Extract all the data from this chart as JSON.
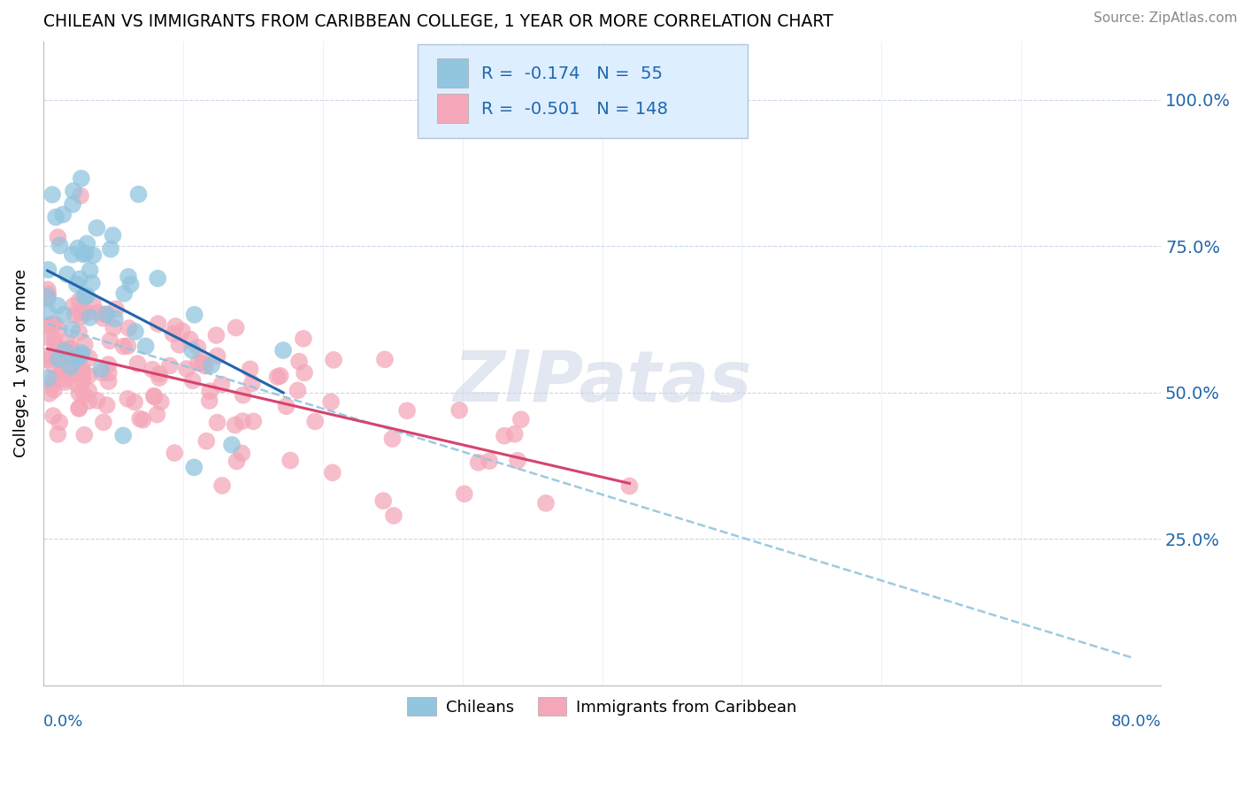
{
  "title": "CHILEAN VS IMMIGRANTS FROM CARIBBEAN COLLEGE, 1 YEAR OR MORE CORRELATION CHART",
  "source": "Source: ZipAtlas.com",
  "ylabel": "College, 1 year or more",
  "xmin": 0.0,
  "xmax": 0.8,
  "ymin": 0.0,
  "ymax": 1.1,
  "chilean_R": -0.174,
  "chilean_N": 55,
  "carib_R": -0.501,
  "carib_N": 148,
  "blue_color": "#92c5de",
  "pink_color": "#f4a7b9",
  "blue_line_color": "#2166ac",
  "pink_line_color": "#d6436e",
  "dash_line_color": "#92c5de",
  "legend_edge_color": "#b0c4d8",
  "legend_face_color": "#ddeeff",
  "text_color_blue": "#2166ac",
  "watermark_color": "#d0d8e8",
  "ytick_vals": [
    0.0,
    0.25,
    0.5,
    0.75,
    1.0
  ],
  "ytick_labels": [
    "",
    "25.0%",
    "50.0%",
    "75.0%",
    "100.0%"
  ]
}
